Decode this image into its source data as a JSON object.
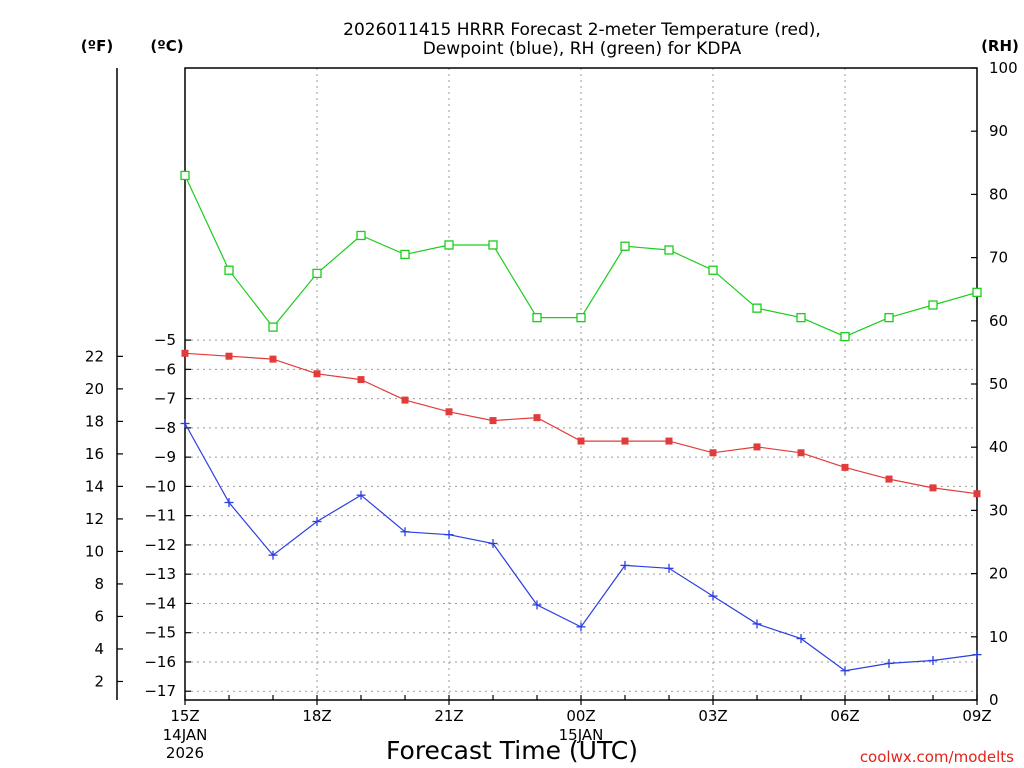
{
  "chart_data": {
    "type": "line",
    "title_line1": "2026011415 HRRR Forecast 2-meter Temperature (red),",
    "title_line2": "Dewpoint (blue), RH (green) for KDPA",
    "xlabel": "Forecast Time (UTC)",
    "credit": "coolwx.com/modelts",
    "left_unit_f": "(ºF)",
    "left_unit_c": "(ºC)",
    "right_unit": "(RH)",
    "x_hours": [
      15,
      16,
      17,
      18,
      19,
      20,
      21,
      22,
      23,
      24,
      25,
      26,
      27,
      28,
      29,
      30,
      31,
      32,
      33
    ],
    "x_tick_labels": [
      {
        "hour": 15,
        "label": "15Z",
        "sub1": "14JAN",
        "sub2": "2026"
      },
      {
        "hour": 18,
        "label": "18Z"
      },
      {
        "hour": 21,
        "label": "21Z"
      },
      {
        "hour": 24,
        "label": "00Z",
        "sub1": "15JAN"
      },
      {
        "hour": 27,
        "label": "03Z"
      },
      {
        "hour": 30,
        "label": "06Z"
      },
      {
        "hour": 33,
        "label": "09Z"
      }
    ],
    "celsius_axis": {
      "ylim": [
        -17.3,
        4.3
      ],
      "ticks": [
        -5,
        -6,
        -7,
        -8,
        -9,
        -10,
        -11,
        -12,
        -13,
        -14,
        -15,
        -16,
        -17
      ]
    },
    "fahrenheit_axis": {
      "ticks": [
        22,
        20,
        18,
        16,
        14,
        12,
        10,
        8,
        6,
        4,
        2
      ]
    },
    "rh_axis": {
      "ylim": [
        0,
        100
      ],
      "ticks": [
        100,
        90,
        80,
        70,
        60,
        50,
        40,
        30,
        20,
        10,
        0
      ]
    },
    "series": [
      {
        "name": "Temperature",
        "color": "#e23b3b",
        "marker": "filled-square",
        "axis": "celsius",
        "values": [
          -5.45,
          -5.55,
          -5.65,
          -6.15,
          -6.35,
          -7.05,
          -7.45,
          -7.75,
          -7.65,
          -8.45,
          -8.45,
          -8.45,
          -8.85,
          -8.65,
          -8.85,
          -9.35,
          -9.75,
          -10.05,
          -10.25
        ]
      },
      {
        "name": "Dewpoint",
        "color": "#2b3ee0",
        "marker": "plus",
        "axis": "celsius",
        "values": [
          -7.85,
          -10.55,
          -12.35,
          -11.2,
          -10.3,
          -11.55,
          -11.65,
          -11.95,
          -14.05,
          -14.8,
          -12.7,
          -12.8,
          -13.75,
          -14.7,
          -15.2,
          -16.3,
          -16.05,
          -15.95,
          -15.75
        ]
      },
      {
        "name": "RH",
        "color": "#1dcc1d",
        "marker": "open-square",
        "axis": "rh",
        "values": [
          83,
          68,
          59,
          67.5,
          73.5,
          70.5,
          72,
          72,
          60.5,
          60.5,
          71.8,
          71.2,
          68,
          62,
          60.5,
          57.5,
          60.5,
          62.5,
          64.5
        ]
      }
    ]
  }
}
